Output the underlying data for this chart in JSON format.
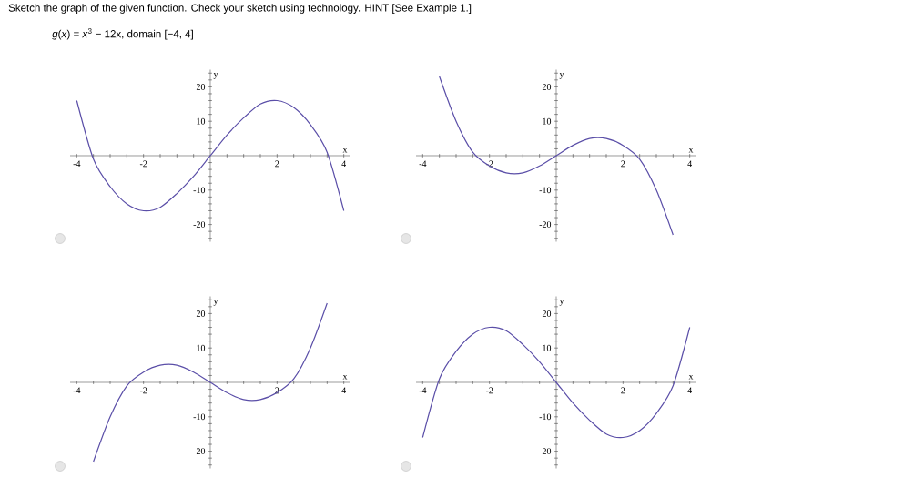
{
  "chart_data": [
    {
      "type": "line",
      "title": "Sketch the graph of the given function. Check your sketch using technology. HINT [See Example 1.]",
      "subtitle": "*g*(*x*) = *x*$^{3}$ − 12x, domain [−4, 4]",
      "xlabel": "x",
      "ylabel": "y",
      "color": "#5b4fa8",
      "x": [
        -4,
        -3.5,
        -3,
        -2.5,
        -2,
        -1.5,
        -1,
        -0.5,
        0,
        0.5,
        1,
        1.5,
        2,
        2.5,
        3,
        3.5,
        4
      ],
      "values": [
        16,
        -1,
        -9,
        -14,
        -16,
        -15,
        -11,
        -6,
        0,
        6,
        11,
        15,
        16,
        14,
        9,
        1,
        -16
      ],
      "xlim": [
        -4.2,
        4.2
      ],
      "ylim": [
        -25,
        25
      ],
      "xticks": [
        -4,
        {
          "value": -3.5,
          "label": null
        },
        {
          "value": -3,
          "label": null
        },
        {
          "value": -2.5,
          "label": null
        },
        -2,
        {
          "value": -1.5,
          "label": null
        },
        {
          "value": -1,
          "label": null
        },
        {
          "value": -0.5,
          "label": null
        },
        {
          "value": 0.5,
          "label": null
        },
        {
          "value": 1,
          "label": null
        },
        {
          "value": 1.5,
          "label": null
        },
        2,
        {
          "value": 2.5,
          "label": null
        },
        {
          "value": 3,
          "label": null
        },
        {
          "value": 3.5,
          "label": null
        },
        4
      ],
      "yticks": [
        {
          "value": -24,
          "label": null
        },
        {
          "value": -22,
          "label": null
        },
        -20,
        {
          "value": -18,
          "label": null
        },
        {
          "value": -16,
          "label": null
        },
        {
          "value": -14,
          "label": null
        },
        {
          "value": -12,
          "label": null
        },
        -10,
        {
          "value": -8,
          "label": null
        },
        {
          "value": -6,
          "label": null
        },
        {
          "value": -4,
          "label": null
        },
        {
          "value": -2,
          "label": null
        },
        {
          "value": 2,
          "label": null
        },
        {
          "value": 4,
          "label": null
        },
        {
          "value": 6,
          "label": null
        },
        {
          "value": 8,
          "label": null
        },
        10,
        {
          "value": 12,
          "label": null
        },
        {
          "value": 14,
          "label": null
        },
        {
          "value": 16,
          "label": null
        },
        {
          "value": 18,
          "label": null
        },
        20,
        {
          "value": 22,
          "label": null
        },
        {
          "value": 24,
          "label": null
        }
      ]
    },
    {
      "type": "line",
      "xlabel": "x",
      "ylabel": "y",
      "color": "#5b4fa8",
      "x": [
        -3.5,
        -3,
        -2.5,
        -2,
        -1.5,
        -1,
        -0.5,
        0,
        0.5,
        1,
        1.5,
        2,
        2.5,
        3,
        3.5
      ],
      "values": [
        23,
        10,
        1,
        -3,
        -5,
        -5,
        -3,
        0,
        3,
        5,
        5,
        3,
        -1,
        -10,
        -23
      ],
      "xlim": [
        -4.2,
        4.2
      ],
      "ylim": [
        -25,
        25
      ],
      "xticks": [
        -4,
        {
          "value": -3.5,
          "label": null
        },
        {
          "value": -3,
          "label": null
        },
        {
          "value": -2.5,
          "label": null
        },
        -2,
        {
          "value": -1.5,
          "label": null
        },
        {
          "value": -1,
          "label": null
        },
        {
          "value": -0.5,
          "label": null
        },
        {
          "value": 0.5,
          "label": null
        },
        {
          "value": 1,
          "label": null
        },
        {
          "value": 1.5,
          "label": null
        },
        2,
        {
          "value": 2.5,
          "label": null
        },
        {
          "value": 3,
          "label": null
        },
        {
          "value": 3.5,
          "label": null
        },
        4
      ],
      "yticks": [
        {
          "value": -24,
          "label": null
        },
        {
          "value": -22,
          "label": null
        },
        -20,
        {
          "value": -18,
          "label": null
        },
        {
          "value": -16,
          "label": null
        },
        {
          "value": -14,
          "label": null
        },
        {
          "value": -12,
          "label": null
        },
        -10,
        {
          "value": -8,
          "label": null
        },
        {
          "value": -6,
          "label": null
        },
        {
          "value": -4,
          "label": null
        },
        {
          "value": -2,
          "label": null
        },
        {
          "value": 2,
          "label": null
        },
        {
          "value": 4,
          "label": null
        },
        {
          "value": 6,
          "label": null
        },
        {
          "value": 8,
          "label": null
        },
        10,
        {
          "value": 12,
          "label": null
        },
        {
          "value": 14,
          "label": null
        },
        {
          "value": 16,
          "label": null
        },
        {
          "value": 18,
          "label": null
        },
        20,
        {
          "value": 22,
          "label": null
        },
        {
          "value": 24,
          "label": null
        }
      ]
    },
    {
      "type": "line",
      "xlabel": "x",
      "ylabel": "y",
      "color": "#5b4fa8",
      "x": [
        -3.5,
        -3,
        -2.5,
        -2,
        -1.5,
        -1,
        -0.5,
        0,
        0.5,
        1,
        1.5,
        2,
        2.5,
        3,
        3.5
      ],
      "values": [
        -23,
        -10,
        -1,
        3,
        5,
        5,
        3,
        0,
        -3,
        -5,
        -5,
        -3,
        1,
        10,
        23
      ],
      "xlim": [
        -4.2,
        4.2
      ],
      "ylim": [
        -25,
        25
      ],
      "xticks": [
        -4,
        {
          "value": -3.5,
          "label": null
        },
        {
          "value": -3,
          "label": null
        },
        {
          "value": -2.5,
          "label": null
        },
        -2,
        {
          "value": -1.5,
          "label": null
        },
        {
          "value": -1,
          "label": null
        },
        {
          "value": -0.5,
          "label": null
        },
        {
          "value": 0.5,
          "label": null
        },
        {
          "value": 1,
          "label": null
        },
        {
          "value": 1.5,
          "label": null
        },
        2,
        {
          "value": 2.5,
          "label": null
        },
        {
          "value": 3,
          "label": null
        },
        {
          "value": 3.5,
          "label": null
        },
        4
      ],
      "yticks": [
        {
          "value": -24,
          "label": null
        },
        {
          "value": -22,
          "label": null
        },
        -20,
        {
          "value": -18,
          "label": null
        },
        {
          "value": -16,
          "label": null
        },
        {
          "value": -14,
          "label": null
        },
        {
          "value": -12,
          "label": null
        },
        -10,
        {
          "value": -8,
          "label": null
        },
        {
          "value": -6,
          "label": null
        },
        {
          "value": -4,
          "label": null
        },
        {
          "value": -2,
          "label": null
        },
        {
          "value": 2,
          "label": null
        },
        {
          "value": 4,
          "label": null
        },
        {
          "value": 6,
          "label": null
        },
        {
          "value": 8,
          "label": null
        },
        10,
        {
          "value": 12,
          "label": null
        },
        {
          "value": 14,
          "label": null
        },
        {
          "value": 16,
          "label": null
        },
        {
          "value": 18,
          "label": null
        },
        20,
        {
          "value": 22,
          "label": null
        },
        {
          "value": 24,
          "label": null
        }
      ]
    },
    {
      "type": "line",
      "xlabel": "x",
      "ylabel": "y",
      "color": "#5b4fa8",
      "x": [
        -4,
        -3.5,
        -3,
        -2.5,
        -2,
        -1.5,
        -1,
        -0.5,
        0,
        0.5,
        1,
        1.5,
        2,
        2.5,
        3,
        3.5,
        4
      ],
      "values": [
        -16,
        1,
        9,
        14,
        16,
        15,
        11,
        6,
        0,
        -6,
        -11,
        -15,
        -16,
        -14,
        -9,
        -1,
        16
      ],
      "xlim": [
        -4.2,
        4.2
      ],
      "ylim": [
        -25,
        25
      ],
      "xticks": [
        -4,
        {
          "value": -3.5,
          "label": null
        },
        {
          "value": -3,
          "label": null
        },
        {
          "value": -2.5,
          "label": null
        },
        -2,
        {
          "value": -1.5,
          "label": null
        },
        {
          "value": -1,
          "label": null
        },
        {
          "value": -0.5,
          "label": null
        },
        {
          "value": 0.5,
          "label": null
        },
        {
          "value": 1,
          "label": null
        },
        {
          "value": 1.5,
          "label": null
        },
        2,
        {
          "value": 2.5,
          "label": null
        },
        {
          "value": 3,
          "label": null
        },
        {
          "value": 3.5,
          "label": null
        },
        4
      ],
      "yticks": [
        {
          "value": -24,
          "label": null
        },
        {
          "value": -22,
          "label": null
        },
        -20,
        {
          "value": -18,
          "label": null
        },
        {
          "value": -16,
          "label": null
        },
        {
          "value": -14,
          "label": null
        },
        {
          "value": -12,
          "label": null
        },
        -10,
        {
          "value": -8,
          "label": null
        },
        {
          "value": -6,
          "label": null
        },
        {
          "value": -4,
          "label": null
        },
        {
          "value": -2,
          "label": null
        },
        {
          "value": 2,
          "label": null
        },
        {
          "value": 4,
          "label": null
        },
        {
          "value": 6,
          "label": null
        },
        {
          "value": 8,
          "label": null
        },
        10,
        {
          "value": 12,
          "label": null
        },
        {
          "value": 14,
          "label": null
        },
        {
          "value": 16,
          "label": null
        },
        {
          "value": 18,
          "label": null
        },
        20,
        {
          "value": 22,
          "label": null
        },
        {
          "value": 24,
          "label": null
        }
      ]
    }
  ]
}
